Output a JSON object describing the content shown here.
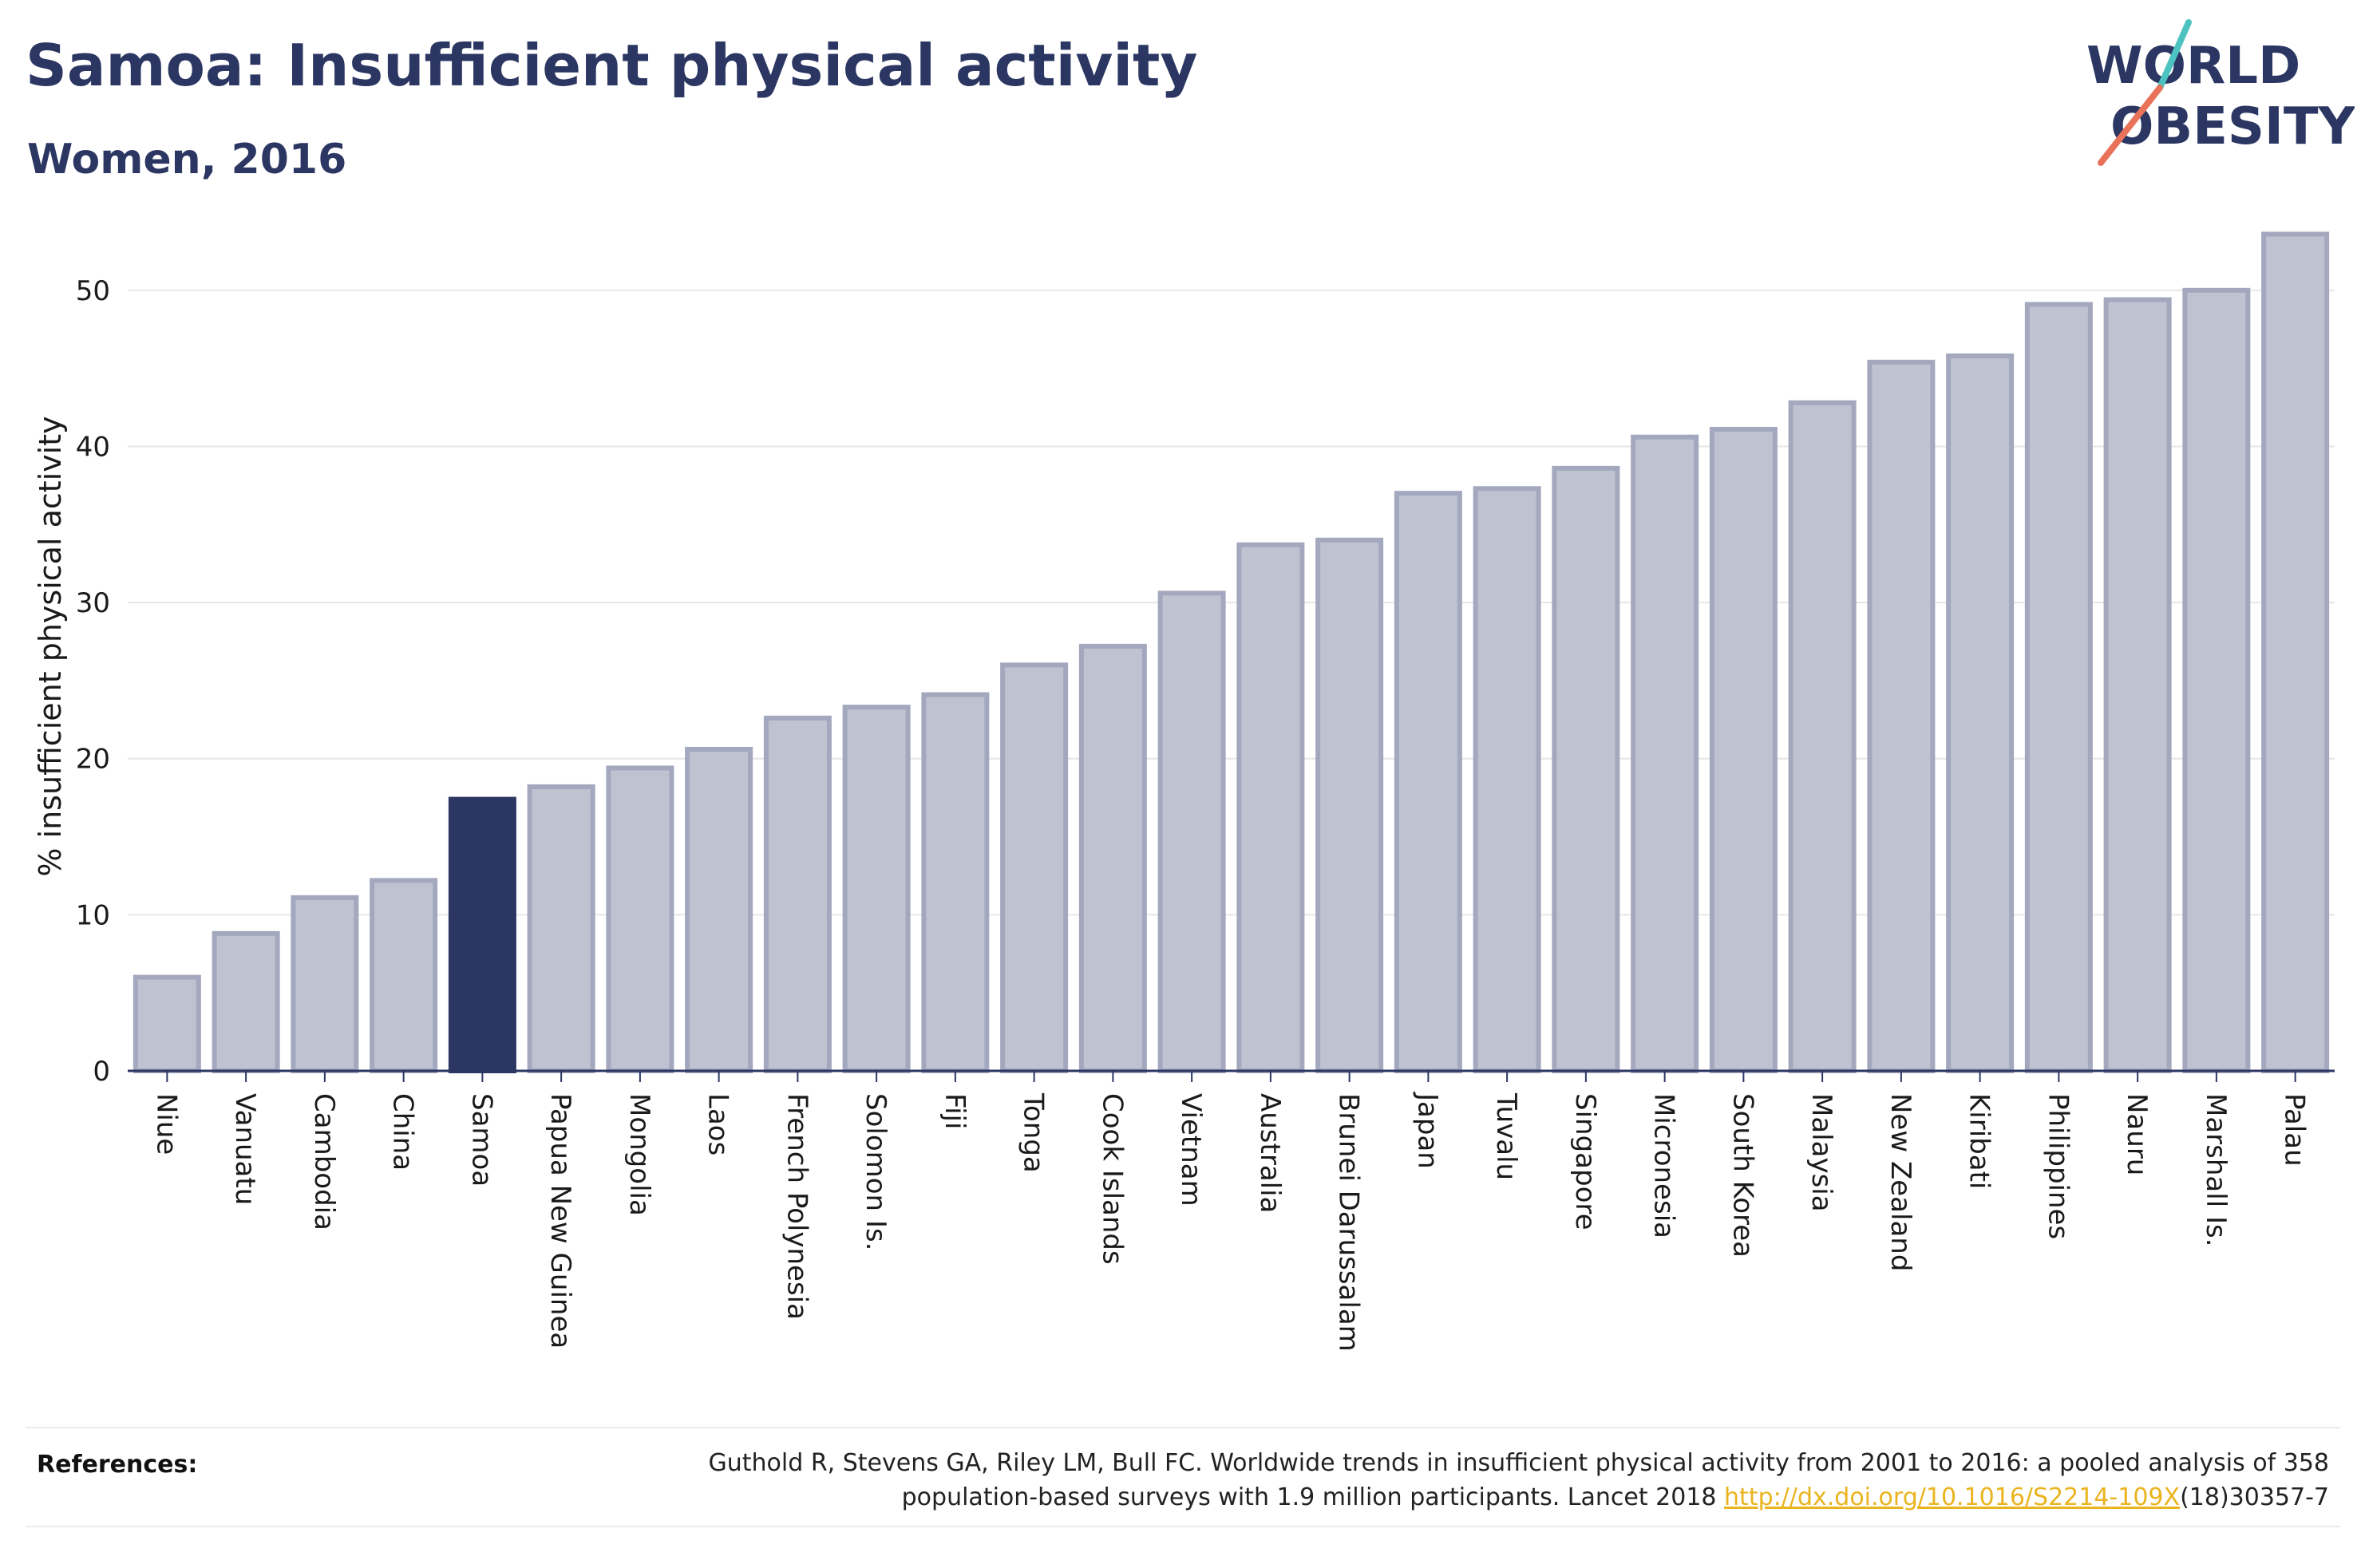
{
  "header": {
    "title": "Samoa: Insufficient physical activity",
    "subtitle": "Women, 2016"
  },
  "logo": {
    "line1": "WORLD",
    "line2": "OBESITY",
    "slash_colors": [
      "#4dc3c1",
      "#e8735a"
    ],
    "text_color": "#2b3662"
  },
  "chart_data": {
    "type": "bar",
    "ylabel": "% insufficient physical activity",
    "ylim": [
      0,
      55
    ],
    "yticks": [
      0,
      10,
      20,
      30,
      40,
      50
    ],
    "grid": true,
    "highlight": "Samoa",
    "colors": {
      "bar_fill": "#bfc2d0",
      "bar_stroke": "#a3a8be",
      "highlight": "#2b3662"
    },
    "categories": [
      "Niue",
      "Vanuatu",
      "Cambodia",
      "China",
      "Samoa",
      "Papua New Guinea",
      "Mongolia",
      "Laos",
      "French Polynesia",
      "Solomon Is.",
      "Fiji",
      "Tonga",
      "Cook Islands",
      "Vietnam",
      "Australia",
      "Brunei Darussalam",
      "Japan",
      "Tuvalu",
      "Singapore",
      "Micronesia",
      "South Korea",
      "Malaysia",
      "New Zealand",
      "Kiribati",
      "Philippines",
      "Nauru",
      "Marshall Is.",
      "Palau"
    ],
    "values": [
      6.0,
      8.8,
      11.1,
      12.2,
      17.4,
      18.2,
      19.4,
      20.6,
      22.6,
      23.3,
      24.1,
      26.0,
      27.2,
      30.6,
      33.7,
      34.0,
      37.0,
      37.3,
      38.6,
      40.6,
      41.1,
      42.8,
      45.4,
      45.8,
      49.1,
      49.4,
      50.0,
      53.6
    ]
  },
  "footer": {
    "label": "References:",
    "line1": "Guthold R, Stevens GA, Riley LM, Bull FC. Worldwide trends in insufficient physical activity from 2001 to 2016: a pooled analysis of 358",
    "line2_pre": "population-based surveys with 1.9 million participants. Lancet 2018 ",
    "link": "http://dx.doi.org/10.1016/S2214-109X",
    "line2_post": "(18)30357-7",
    "link_color": "#e9b41f"
  }
}
